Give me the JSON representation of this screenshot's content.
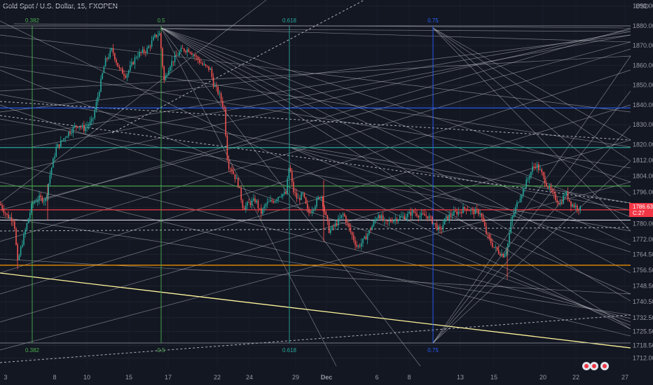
{
  "header": {
    "symbol_title": "Gold Spot / U.S. Dollar, 15, FXOPEN",
    "currency": "USD"
  },
  "chart_data": {
    "type": "candlestick",
    "y_axis": {
      "min": 1708,
      "max": 1892,
      "ticks": [
        "1890.00",
        "1880.00",
        "1870.00",
        "1860.00",
        "1850.00",
        "1840.00",
        "1830.00",
        "1820.00",
        "1812.00",
        "1804.00",
        "1796.00",
        "1788.00",
        "1780.00",
        "1772.00",
        "1764.50",
        "1756.50",
        "1748.50",
        "1740.50",
        "1732.50",
        "1725.50",
        "1718.50",
        "1712.00"
      ]
    },
    "x_axis": {
      "ticks": [
        "3",
        "8",
        "10",
        "15",
        "17",
        "22",
        "24",
        "29",
        "Dec",
        "6",
        "8",
        "13",
        "15",
        "20",
        "22",
        "27"
      ]
    },
    "price_label": {
      "price": "1786.63",
      "countdown": "C:27"
    },
    "fib_levels": [
      "0.382",
      "0.5",
      "0.618",
      "0.75"
    ],
    "horizontal_levels": [
      {
        "price": 1838.5,
        "color": "#2962ff"
      },
      {
        "price": 1818.5,
        "color": "#26a69a"
      },
      {
        "price": 1799.0,
        "color": "#4caf50"
      },
      {
        "price": 1787.0,
        "color": "#f23645"
      },
      {
        "price": 1781.8,
        "color": "#d1d4dc"
      },
      {
        "price": 1759.0,
        "color": "#ff9800"
      }
    ],
    "close_path": [
      [
        0,
        1790
      ],
      [
        10,
        1784
      ],
      [
        20,
        1782
      ],
      [
        25,
        1760
      ],
      [
        30,
        1768
      ],
      [
        40,
        1782
      ],
      [
        46,
        1790
      ],
      [
        55,
        1793
      ],
      [
        65,
        1792
      ],
      [
        72,
        1806
      ],
      [
        80,
        1818
      ],
      [
        95,
        1825
      ],
      [
        110,
        1830
      ],
      [
        120,
        1828
      ],
      [
        132,
        1832
      ],
      [
        140,
        1845
      ],
      [
        150,
        1862
      ],
      [
        160,
        1868
      ],
      [
        170,
        1858
      ],
      [
        180,
        1855
      ],
      [
        195,
        1865
      ],
      [
        210,
        1868
      ],
      [
        222,
        1875
      ],
      [
        228,
        1876
      ],
      [
        234,
        1852
      ],
      [
        242,
        1860
      ],
      [
        250,
        1864
      ],
      [
        260,
        1868
      ],
      [
        270,
        1868
      ],
      [
        280,
        1864
      ],
      [
        290,
        1860
      ],
      [
        300,
        1858
      ],
      [
        305,
        1850
      ],
      [
        312,
        1846
      ],
      [
        320,
        1838
      ],
      [
        325,
        1810
      ],
      [
        330,
        1808
      ],
      [
        340,
        1800
      ],
      [
        347,
        1788
      ],
      [
        355,
        1790
      ],
      [
        365,
        1792
      ],
      [
        372,
        1785
      ],
      [
        380,
        1790
      ],
      [
        392,
        1792
      ],
      [
        400,
        1795
      ],
      [
        408,
        1795
      ],
      [
        413,
        1810
      ],
      [
        418,
        1797
      ],
      [
        425,
        1792
      ],
      [
        432,
        1795
      ],
      [
        440,
        1785
      ],
      [
        450,
        1790
      ],
      [
        458,
        1795
      ],
      [
        462,
        1788
      ],
      [
        470,
        1776
      ],
      [
        480,
        1780
      ],
      [
        490,
        1785
      ],
      [
        500,
        1776
      ],
      [
        510,
        1768
      ],
      [
        520,
        1772
      ],
      [
        530,
        1778
      ],
      [
        540,
        1785
      ],
      [
        550,
        1780
      ],
      [
        560,
        1782
      ],
      [
        570,
        1783
      ],
      [
        580,
        1784
      ],
      [
        590,
        1786
      ],
      [
        600,
        1784
      ],
      [
        610,
        1784
      ],
      [
        620,
        1780
      ],
      [
        628,
        1776
      ],
      [
        635,
        1782
      ],
      [
        645,
        1785
      ],
      [
        655,
        1786
      ],
      [
        665,
        1788
      ],
      [
        675,
        1786
      ],
      [
        685,
        1786
      ],
      [
        690,
        1780
      ],
      [
        695,
        1774
      ],
      [
        705,
        1768
      ],
      [
        718,
        1764
      ],
      [
        724,
        1768
      ],
      [
        730,
        1782
      ],
      [
        740,
        1792
      ],
      [
        750,
        1800
      ],
      [
        760,
        1808
      ],
      [
        765,
        1810
      ],
      [
        772,
        1806
      ],
      [
        780,
        1800
      ],
      [
        790,
        1794
      ],
      [
        800,
        1790
      ],
      [
        807,
        1796
      ],
      [
        815,
        1790
      ],
      [
        825,
        1788
      ],
      [
        830,
        1787
      ]
    ]
  }
}
